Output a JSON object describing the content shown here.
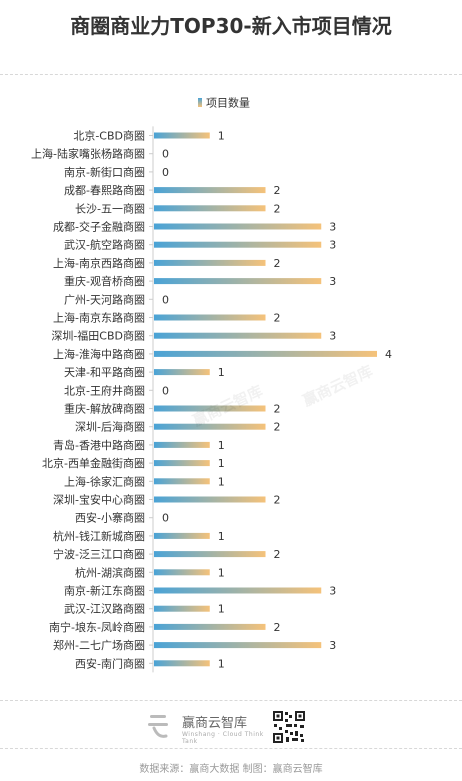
{
  "title": "商圈商业力TOP30-新入市项目情况",
  "brand": {
    "name": "赢商云智库",
    "sub": "Winshang · Cloud Think Tank"
  },
  "watermark": "赢商云智库",
  "footer": "数据来源：赢商大数据  制图：赢商云智库",
  "colors": {
    "bar_start": "#4aa3d6",
    "bar_end": "#f5c27a",
    "axis": "#cccccc",
    "text": "#333333"
  },
  "chart_data": {
    "type": "bar",
    "orientation": "horizontal",
    "title": "",
    "legend": {
      "label": "项目数量",
      "position": "top-right"
    },
    "xlim": [
      0,
      4
    ],
    "grid": false,
    "categories": [
      "北京-CBD商圈",
      "上海-陆家嘴张杨路商圈",
      "南京-新街口商圈",
      "成都-春熙路商圈",
      "长沙-五一商圈",
      "成都-交子金融商圈",
      "武汉-航空路商圈",
      "上海-南京西路商圈",
      "重庆-观音桥商圈",
      "广州-天河路商圈",
      "上海-南京东路商圈",
      "深圳-福田CBD商圈",
      "上海-淮海中路商圈",
      "天津-和平路商圈",
      "北京-王府井商圈",
      "重庆-解放碑商圈",
      "深圳-后海商圈",
      "青岛-香港中路商圈",
      "北京-西单金融街商圈",
      "上海-徐家汇商圈",
      "深圳-宝安中心商圈",
      "西安-小寨商圈",
      "杭州-钱江新城商圈",
      "宁波-泛三江口商圈",
      "杭州-湖滨商圈",
      "南京-新江东商圈",
      "武汉-江汉路商圈",
      "南宁-埌东-凤岭商圈",
      "郑州-二七广场商圈",
      "西安-南门商圈"
    ],
    "series": [
      {
        "name": "项目数量",
        "values": [
          1,
          0,
          0,
          2,
          2,
          3,
          3,
          2,
          3,
          0,
          2,
          3,
          4,
          1,
          0,
          2,
          2,
          1,
          1,
          1,
          2,
          0,
          1,
          2,
          1,
          3,
          1,
          2,
          3,
          1
        ]
      }
    ]
  }
}
